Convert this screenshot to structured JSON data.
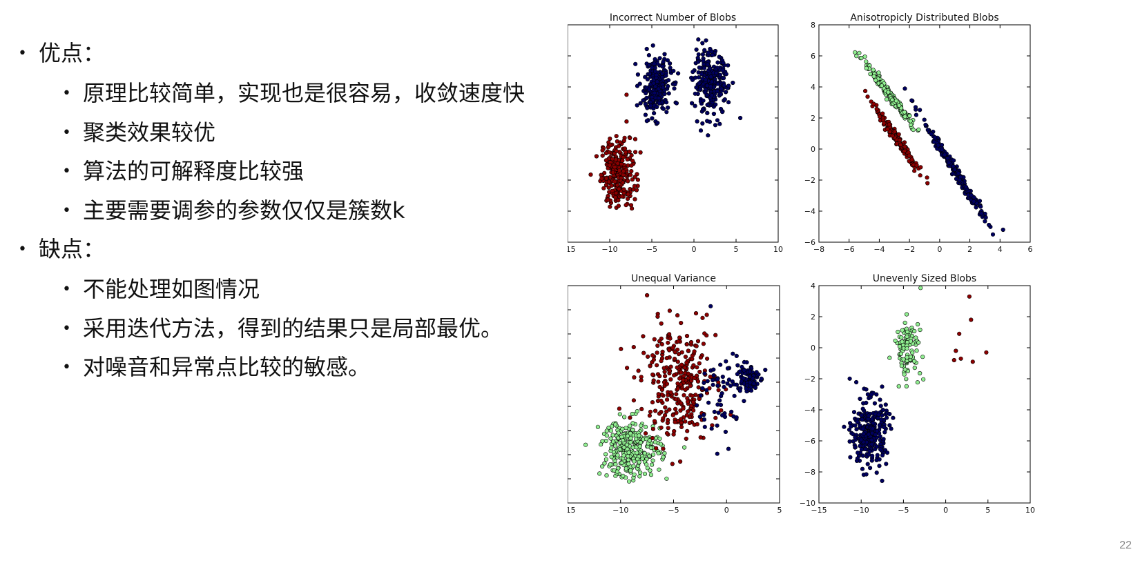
{
  "slide": {
    "bullets": [
      {
        "label": "优点：",
        "children": [
          "原理比较简单，实现也是很容易，收敛速度快",
          "聚类效果较优",
          "算法的可解释度比较强",
          "主要需要调参的参数仅仅是簇数k"
        ]
      },
      {
        "label": "缺点：",
        "children": [
          "不能处理如图情况",
          "采用迭代方法，得到的结果只是局部最优。",
          "对噪音和异常点比较的敏感。"
        ]
      }
    ],
    "page_number": "22"
  },
  "chart_data": [
    {
      "type": "scatter",
      "title": "Incorrect Number of Blobs",
      "xlim": [
        -15,
        10
      ],
      "ylim": [
        -10,
        4
      ],
      "xticks": [
        -15,
        -10,
        -5,
        0,
        5,
        10
      ],
      "yticks": [
        -10,
        -8,
        -6,
        -4,
        -2,
        0,
        2,
        4
      ],
      "grid": false,
      "series": [
        {
          "color": "#8b0000",
          "clusters": [
            {
              "cx": -9.0,
              "cy": -5.5,
              "sx": 1.0,
              "sy": 1.1,
              "n": 260
            }
          ]
        },
        {
          "color": "#00005f",
          "clusters": [
            {
              "cx": -4.5,
              "cy": 0.0,
              "sx": 0.9,
              "sy": 0.9,
              "n": 240
            },
            {
              "cx": 2.0,
              "cy": 0.2,
              "sx": 1.0,
              "sy": 1.0,
              "n": 260
            }
          ]
        }
      ],
      "outliers": [
        {
          "x": -8.0,
          "y": -0.5,
          "series": 0
        },
        {
          "x": 5.5,
          "y": -2.0,
          "series": 1
        }
      ]
    },
    {
      "type": "scatter",
      "title": "Anisotropicly Distributed Blobs",
      "xlim": [
        -8,
        6
      ],
      "ylim": [
        -6,
        8
      ],
      "xticks": [
        -8,
        -6,
        -4,
        -2,
        0,
        2,
        4,
        6
      ],
      "yticks": [
        -6,
        -4,
        -2,
        0,
        2,
        4,
        6,
        8
      ],
      "grid": false,
      "series": [
        {
          "color": "#90ee90",
          "clusters": [
            {
              "cx": -3.3,
              "cy": 3.5,
              "sx": 0.5,
              "sy": 0.15,
              "n": 200,
              "angle": -0.9
            }
          ]
        },
        {
          "color": "#8b0000",
          "clusters": [
            {
              "cx": -2.8,
              "cy": 0.6,
              "sx": 0.45,
              "sy": 0.15,
              "n": 180,
              "angle": -0.95
            }
          ]
        },
        {
          "color": "#00005f",
          "clusters": [
            {
              "cx": 1.0,
              "cy": -1.4,
              "sx": 0.75,
              "sy": 0.15,
              "n": 220,
              "angle": -1.0
            }
          ]
        }
      ],
      "outliers": [
        {
          "x": 4.2,
          "y": -5.2,
          "series": 2
        }
      ]
    },
    {
      "type": "scatter",
      "title": "Unequal Variance",
      "xlim": [
        -15,
        5
      ],
      "ylim": [
        -10,
        8
      ],
      "xticks": [
        -15,
        -10,
        -5,
        0,
        5
      ],
      "yticks": [
        -10,
        -8,
        -6,
        -4,
        -2,
        0,
        2,
        4,
        6,
        8
      ],
      "grid": false,
      "series": [
        {
          "color": "#90ee90",
          "clusters": [
            {
              "cx": -9.0,
              "cy": -5.5,
              "sx": 1.4,
              "sy": 1.2,
              "n": 280
            }
          ]
        },
        {
          "color": "#8b0000",
          "clusters": [
            {
              "cx": -4.5,
              "cy": 0.0,
              "sx": 1.8,
              "sy": 2.3,
              "n": 300
            }
          ]
        },
        {
          "color": "#00005f",
          "clusters": [
            {
              "cx": 2.0,
              "cy": 0.3,
              "sx": 0.5,
              "sy": 0.6,
              "n": 110
            },
            {
              "cx": -0.5,
              "cy": -1.0,
              "sx": 1.1,
              "sy": 1.8,
              "n": 60
            }
          ]
        }
      ],
      "outliers": [
        {
          "x": -7.5,
          "y": 7.2,
          "series": 1
        },
        {
          "x": -1.5,
          "y": 6.3,
          "series": 2
        }
      ]
    },
    {
      "type": "scatter",
      "title": "Unevenly Sized Blobs",
      "xlim": [
        -15,
        10
      ],
      "ylim": [
        -10,
        4
      ],
      "xticks": [
        -15,
        -10,
        -5,
        0,
        5,
        10
      ],
      "yticks": [
        -10,
        -8,
        -6,
        -4,
        -2,
        0,
        2,
        4
      ],
      "grid": false,
      "series": [
        {
          "color": "#00005f",
          "clusters": [
            {
              "cx": -9.0,
              "cy": -5.5,
              "sx": 1.0,
              "sy": 1.1,
              "n": 280
            }
          ]
        },
        {
          "color": "#90ee90",
          "clusters": [
            {
              "cx": -4.5,
              "cy": 0.0,
              "sx": 0.8,
              "sy": 0.9,
              "n": 100
            }
          ]
        },
        {
          "color": "#8b0000",
          "clusters": []
        }
      ],
      "outliers": [
        {
          "x": 2.8,
          "y": 3.3,
          "series": 2
        },
        {
          "x": 3.0,
          "y": 1.8,
          "series": 2
        },
        {
          "x": 1.6,
          "y": 0.9,
          "series": 2
        },
        {
          "x": 1.2,
          "y": -0.2,
          "series": 2
        },
        {
          "x": 1.0,
          "y": -0.8,
          "series": 2
        },
        {
          "x": 1.8,
          "y": -0.7,
          "series": 2
        },
        {
          "x": 3.2,
          "y": -0.9,
          "series": 2
        },
        {
          "x": 4.8,
          "y": -0.3,
          "series": 2
        }
      ]
    }
  ]
}
